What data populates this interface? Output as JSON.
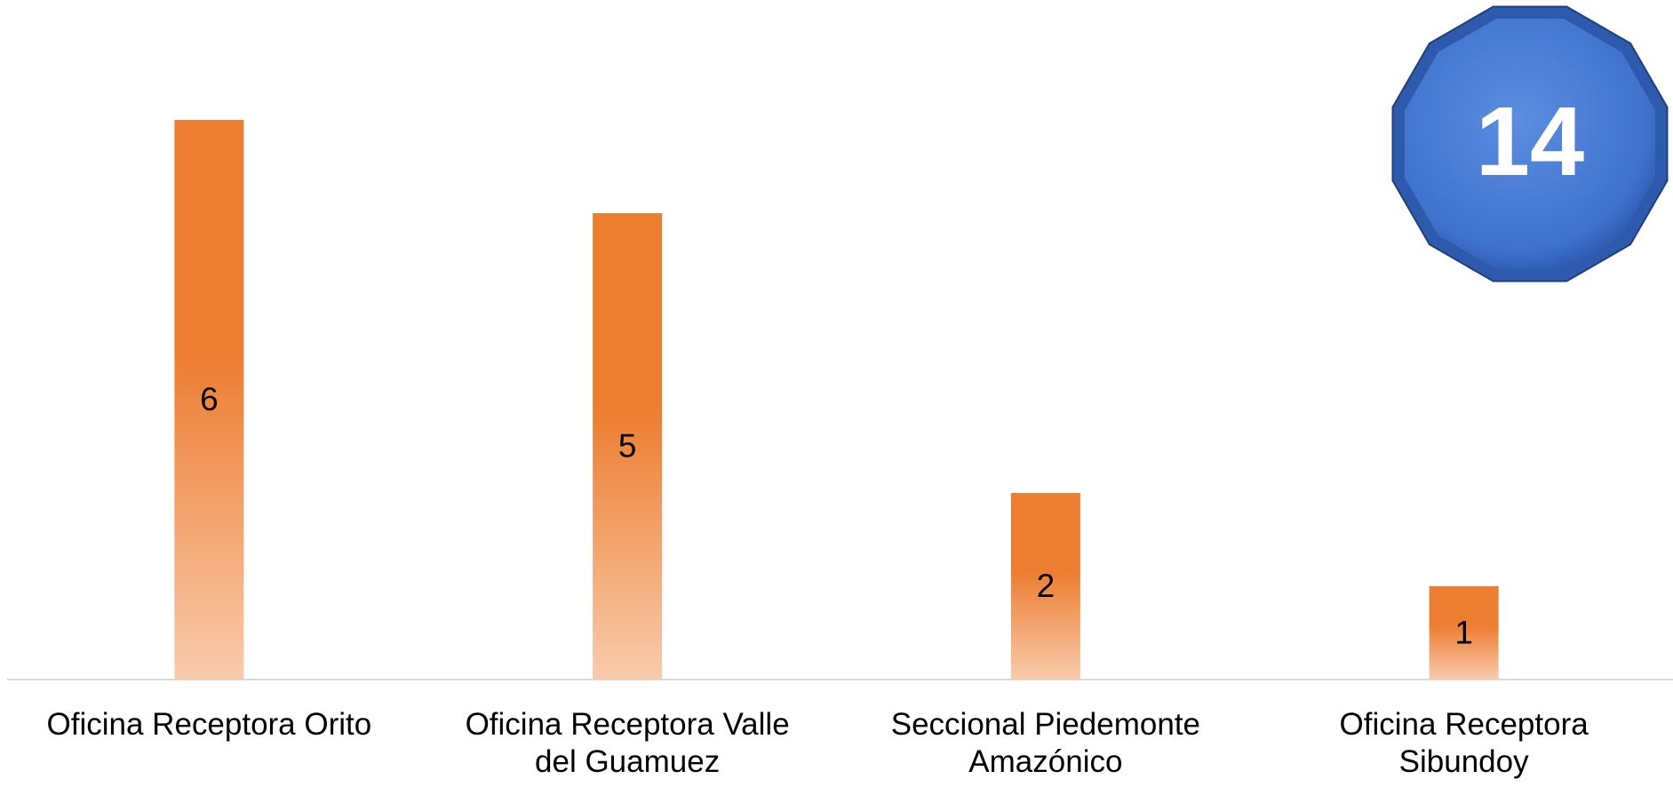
{
  "chart_data": {
    "type": "bar",
    "categories": [
      "Oficina Receptora Orito",
      "Oficina Receptora Valle del Guamuez",
      "Seccional Piedemonte Amazónico",
      "Oficina Receptora Sibundoy"
    ],
    "values": [
      6,
      5,
      2,
      1
    ],
    "color": "#ED7D31",
    "ylim": [
      0,
      7
    ],
    "total": 14
  }
}
